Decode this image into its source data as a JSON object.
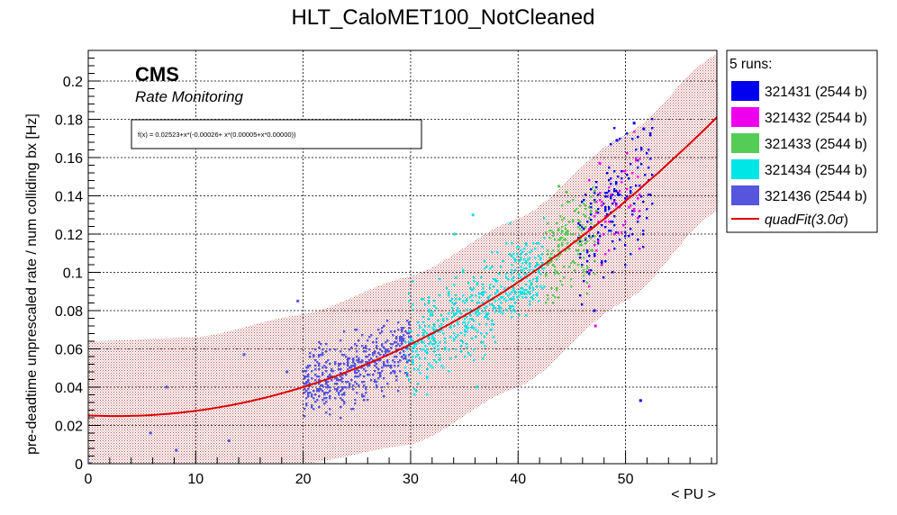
{
  "chart_data": {
    "type": "scatter",
    "title": "HLT_CaloMET100_NotCleaned",
    "xlabel": "< PU >",
    "ylabel": "pre-deadtime unprescaled rate / num colliding bx [Hz]",
    "xlim": [
      0,
      58.5
    ],
    "ylim": [
      0,
      0.216
    ],
    "x_ticks": [
      0,
      10,
      20,
      30,
      40,
      50
    ],
    "y_ticks": [
      0,
      0.02,
      0.04,
      0.06,
      0.08,
      0.1,
      0.12,
      0.14,
      0.16,
      0.18,
      0.2
    ],
    "grid": true,
    "annotations": {
      "cms": "CMS",
      "subtitle": "Rate Monitoring",
      "formula": "f(x) = 0.02523+x*(-0.00026+ x*(0.00005+x*0.00000))"
    },
    "legend": {
      "header": "5 runs:",
      "position": "right-outside"
    },
    "series": [
      {
        "name": "321431 (2544 b)",
        "color": "#0000ee",
        "cluster": {
          "x_range": [
            45.5,
            52.5
          ],
          "center_fn": "fit",
          "spread": 0.016,
          "count": 170
        },
        "points": [
          [
            50.8,
            0.178
          ],
          [
            51.7,
            0.175
          ],
          [
            51.4,
            0.033
          ],
          [
            49.2,
            0.169
          ],
          [
            47.1,
            0.08
          ]
        ]
      },
      {
        "name": "321432 (2544 b)",
        "color": "#ee00ee",
        "cluster": {
          "x_range": [
            46.5,
            51.5
          ],
          "center_fn": "fit",
          "spread": 0.013,
          "count": 60
        },
        "points": [
          [
            47.2,
            0.072
          ],
          [
            47.6,
            0.157
          ]
        ]
      },
      {
        "name": "321433 (2544 b)",
        "color": "#55cc55",
        "cluster": {
          "x_range": [
            42.5,
            47.2
          ],
          "center_fn": "fit",
          "spread": 0.013,
          "count": 160
        },
        "points": [
          [
            44.5,
            0.142
          ],
          [
            43.8,
            0.145
          ]
        ]
      },
      {
        "name": "321434 (2544 b)",
        "color": "#00e5e5",
        "cluster": {
          "x_range": [
            29.5,
            42.5
          ],
          "center_fn": "fit",
          "spread": 0.011,
          "count": 520
        },
        "points": [
          [
            35.8,
            0.13
          ],
          [
            36.2,
            0.04
          ],
          [
            34.1,
            0.12
          ]
        ]
      },
      {
        "name": "321436 (2544 b)",
        "color": "#5555dd",
        "cluster": {
          "x_range": [
            20.0,
            30.0
          ],
          "center_fn": "fit",
          "spread": 0.009,
          "count": 480
        },
        "points": [
          [
            14.5,
            0.057
          ],
          [
            7.3,
            0.04
          ],
          [
            8.2,
            0.007
          ],
          [
            5.8,
            0.016
          ],
          [
            13.1,
            0.012
          ],
          [
            19.5,
            0.085
          ],
          [
            18.5,
            0.048
          ],
          [
            0.2,
            0.0
          ]
        ]
      }
    ],
    "fit": {
      "name": "quadFit(3.0σ)",
      "name_prefix": "quadFit(3.0",
      "name_sigma": "σ",
      "name_suffix": ")",
      "color": "#dd0000",
      "coefficients": [
        0.02523,
        -0.00026,
        5e-05,
        0.0
      ],
      "band_sigma": 3.0,
      "band_low": [
        [
          0,
          -0.014
        ],
        [
          20,
          0.0
        ],
        [
          30,
          0.01
        ],
        [
          40,
          0.04
        ],
        [
          50,
          0.085
        ],
        [
          58.5,
          0.132
        ]
      ],
      "band_high": [
        [
          0,
          0.064
        ],
        [
          10,
          0.066
        ],
        [
          20,
          0.078
        ],
        [
          30,
          0.098
        ],
        [
          40,
          0.128
        ],
        [
          50,
          0.172
        ],
        [
          58.5,
          0.214
        ]
      ],
      "band_color": "#b04040"
    }
  }
}
